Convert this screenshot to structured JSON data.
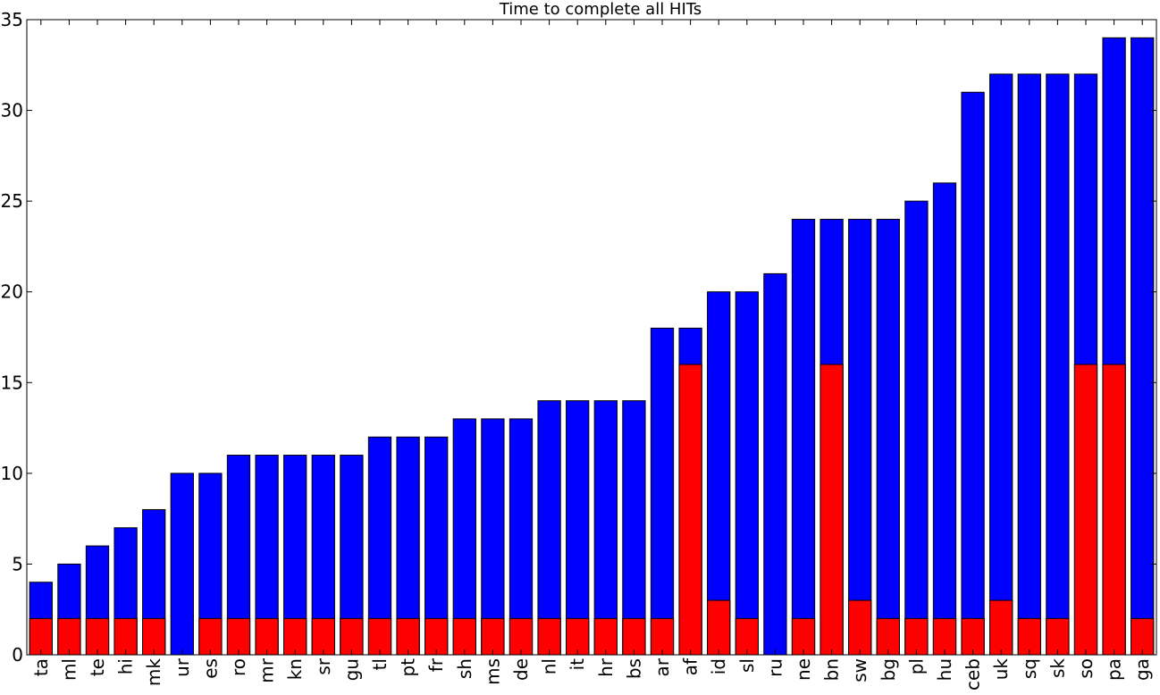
{
  "chart_data": {
    "type": "bar",
    "stacked": false,
    "overlaid": true,
    "title": "Time to complete all HITs",
    "xlabel": "",
    "ylabel": "",
    "ylim": [
      0,
      35
    ],
    "yticks": [
      0,
      5,
      10,
      15,
      20,
      25,
      30,
      35
    ],
    "grid": false,
    "categories": [
      "ta",
      "ml",
      "te",
      "hi",
      "mk",
      "ur",
      "es",
      "ro",
      "mr",
      "kn",
      "sr",
      "gu",
      "tl",
      "pt",
      "fr",
      "sh",
      "ms",
      "de",
      "nl",
      "it",
      "hr",
      "bs",
      "ar",
      "af",
      "id",
      "sl",
      "ru",
      "ne",
      "bn",
      "sw",
      "bg",
      "pl",
      "hu",
      "ceb",
      "uk",
      "sq",
      "sk",
      "so",
      "pa",
      "ga"
    ],
    "series": [
      {
        "color": "#0000ff",
        "values": [
          4,
          5,
          6,
          7,
          8,
          10,
          10,
          11,
          11,
          11,
          11,
          11,
          12,
          12,
          12,
          13,
          13,
          13,
          14,
          14,
          14,
          14,
          18,
          18,
          20,
          20,
          21,
          24,
          24,
          24,
          24,
          25,
          26,
          31,
          32,
          32,
          32,
          32,
          34,
          34
        ]
      },
      {
        "color": "#ff0000",
        "values": [
          2,
          2,
          2,
          2,
          2,
          0,
          2,
          2,
          2,
          2,
          2,
          2,
          2,
          2,
          2,
          2,
          2,
          2,
          2,
          2,
          2,
          2,
          2,
          16,
          3,
          2,
          0,
          2,
          16,
          3,
          2,
          2,
          2,
          2,
          3,
          2,
          2,
          16,
          16,
          2
        ]
      }
    ]
  }
}
